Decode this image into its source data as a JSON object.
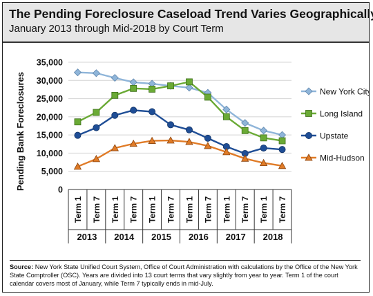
{
  "header": {
    "title": "The Pending Foreclosure Caseload Trend Varies Geographically",
    "subtitle": "January 2013 through Mid-2018 by Court Term"
  },
  "footer": {
    "source_label": "Source:",
    "source_text": "New York State Unified Court System, Office of Court Administration with calculations by the Office of the New York State Comptroller (OSC). Years are divided into 13 court terms that vary slightly from year to year. Term 1 of the court calendar covers most of January, while Term 7 typically ends in mid-July."
  },
  "chart_data": {
    "type": "line",
    "title": "The Pending Foreclosure Caseload Trend Varies Geographically",
    "subtitle": "January 2013 through Mid-2018 by Court Term",
    "ylabel": "Pending Bank Foreclosures",
    "xlabel": "",
    "ylim": [
      0,
      35000
    ],
    "yticks": [
      0,
      5000,
      10000,
      15000,
      20000,
      25000,
      30000,
      35000
    ],
    "ytick_labels": [
      "0",
      "5,000",
      "10,000",
      "15,000",
      "20,000",
      "25,000",
      "30,000",
      "35,000"
    ],
    "grid": "horizontal",
    "legend_position": "right",
    "categories": [
      "Term 1",
      "Term 7",
      "Term 1",
      "Term 7",
      "Term 1",
      "Term 7",
      "Term 1",
      "Term 7",
      "Term 1",
      "Term 7",
      "Term 1",
      "Term 7"
    ],
    "year_groups": [
      "2013",
      "2014",
      "2015",
      "2016",
      "2017",
      "2018"
    ],
    "x": [
      "2013 Term 1",
      "2013 Term 7",
      "2014 Term 1",
      "2014 Term 7",
      "2015 Term 1",
      "2015 Term 7",
      "2016 Term 1",
      "2016 Term 7",
      "2017 Term 1",
      "2017 Term 7",
      "2018 Term 1",
      "2018 Term 7"
    ],
    "series": [
      {
        "name": "New York City",
        "color": "#8fb5d9",
        "edge": "#5f86ad",
        "marker": "diamond",
        "values": [
          32200,
          32000,
          30700,
          29500,
          29100,
          28500,
          28000,
          26600,
          22000,
          18300,
          16200,
          15000
        ]
      },
      {
        "name": "Long Island",
        "color": "#6aaa35",
        "edge": "#3d6f1a",
        "marker": "square",
        "values": [
          18600,
          21200,
          25900,
          27800,
          27600,
          28500,
          29600,
          25400,
          20000,
          16200,
          14200,
          13400
        ]
      },
      {
        "name": "Upstate",
        "color": "#1f4e96",
        "edge": "#133466",
        "marker": "circle",
        "values": [
          14900,
          17000,
          20400,
          21800,
          21400,
          17800,
          16400,
          14100,
          11800,
          9900,
          11400,
          11000
        ]
      },
      {
        "name": "Mid-Hudson",
        "color": "#e07b27",
        "edge": "#8a4510",
        "marker": "triangle",
        "values": [
          6300,
          8400,
          11400,
          12600,
          13400,
          13500,
          13100,
          12000,
          10300,
          8500,
          7300,
          6500
        ]
      }
    ]
  }
}
